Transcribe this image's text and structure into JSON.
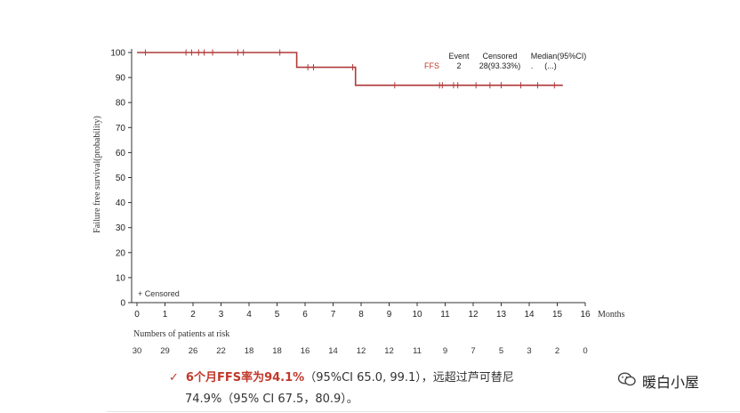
{
  "chart_data": {
    "type": "line",
    "subtype": "kaplan-meier",
    "xlabel": "Months",
    "ylabel": "Failure free survival(probability)",
    "xlim": [
      0,
      16
    ],
    "ylim": [
      0,
      100
    ],
    "x_ticks": [
      0,
      1,
      2,
      3,
      4,
      5,
      6,
      7,
      8,
      9,
      10,
      11,
      12,
      13,
      14,
      15,
      16
    ],
    "y_ticks": [
      0,
      10,
      20,
      30,
      40,
      50,
      60,
      70,
      80,
      90,
      100
    ],
    "grid": false,
    "series": [
      {
        "name": "FFS",
        "color": "#b03a3a",
        "steps": [
          [
            0,
            100
          ],
          [
            5.7,
            100
          ],
          [
            5.7,
            94.1
          ],
          [
            7.8,
            94.1
          ],
          [
            7.8,
            86.9
          ],
          [
            15.2,
            86.9
          ]
        ],
        "censored": [
          {
            "x": 0.3,
            "y": 100
          },
          {
            "x": 1.75,
            "y": 100
          },
          {
            "x": 1.95,
            "y": 100
          },
          {
            "x": 2.2,
            "y": 100
          },
          {
            "x": 2.4,
            "y": 100
          },
          {
            "x": 2.7,
            "y": 100
          },
          {
            "x": 3.6,
            "y": 100
          },
          {
            "x": 3.8,
            "y": 100
          },
          {
            "x": 5.1,
            "y": 100
          },
          {
            "x": 6.1,
            "y": 94.1
          },
          {
            "x": 6.3,
            "y": 94.1
          },
          {
            "x": 7.7,
            "y": 94.1
          },
          {
            "x": 9.2,
            "y": 86.9
          },
          {
            "x": 10.8,
            "y": 86.9
          },
          {
            "x": 10.9,
            "y": 86.9
          },
          {
            "x": 11.3,
            "y": 86.9
          },
          {
            "x": 11.45,
            "y": 86.9
          },
          {
            "x": 12.1,
            "y": 86.9
          },
          {
            "x": 12.6,
            "y": 86.9
          },
          {
            "x": 13.0,
            "y": 86.9
          },
          {
            "x": 13.7,
            "y": 86.9
          },
          {
            "x": 14.3,
            "y": 86.9
          },
          {
            "x": 14.9,
            "y": 86.9
          }
        ]
      }
    ],
    "legend": {
      "placement": "top-right",
      "headers": [
        "Event",
        "Censored",
        "Median(95%CI)"
      ],
      "rows": [
        {
          "name": "FFS",
          "event": "2",
          "censored": "28(93.33%)",
          "median": ".",
          "ci": "(...)"
        }
      ]
    },
    "censor_note": "+ Censored",
    "risk_table": {
      "title": "Numbers of patients at risk",
      "x": [
        0,
        1,
        2,
        3,
        4,
        5,
        6,
        7,
        8,
        9,
        10,
        11,
        12,
        13,
        14,
        15,
        16
      ],
      "values": [
        "30",
        "29",
        "26",
        "22",
        "18",
        "18",
        "16",
        "14",
        "12",
        "12",
        "11",
        "9",
        "7",
        "5",
        "3",
        "2",
        "0"
      ]
    }
  },
  "note": {
    "check": "✓",
    "highlight": "6个月FFS率为94.1%",
    "line1_rest": "（95%CI 65.0, 99.1），远超过芦可替尼",
    "line2": "74.9%（95% CI 67.5，80.9）。"
  },
  "brand": {
    "label": "暖白小屋",
    "icon": "wechat-icon"
  }
}
